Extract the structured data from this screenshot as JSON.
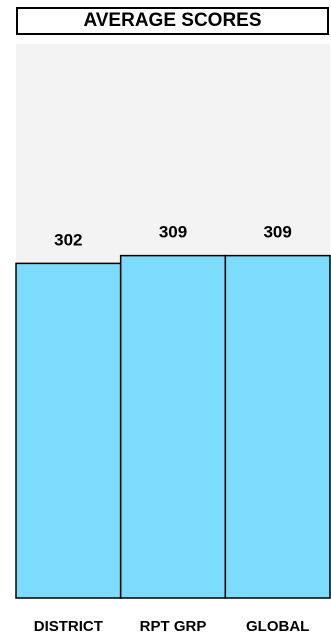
{
  "chart_data": {
    "type": "bar",
    "title": "AVERAGE SCORES",
    "categories": [
      "DISTRICT",
      "RPT GRP",
      "GLOBAL"
    ],
    "values": [
      302,
      309,
      309
    ],
    "ylim": [
      0,
      500
    ],
    "xlabel": "",
    "ylabel": "",
    "grid": false,
    "colors": {
      "bar": "#7ddcfc",
      "plot_background": "#f3f3f3",
      "outline": "#000000"
    }
  }
}
